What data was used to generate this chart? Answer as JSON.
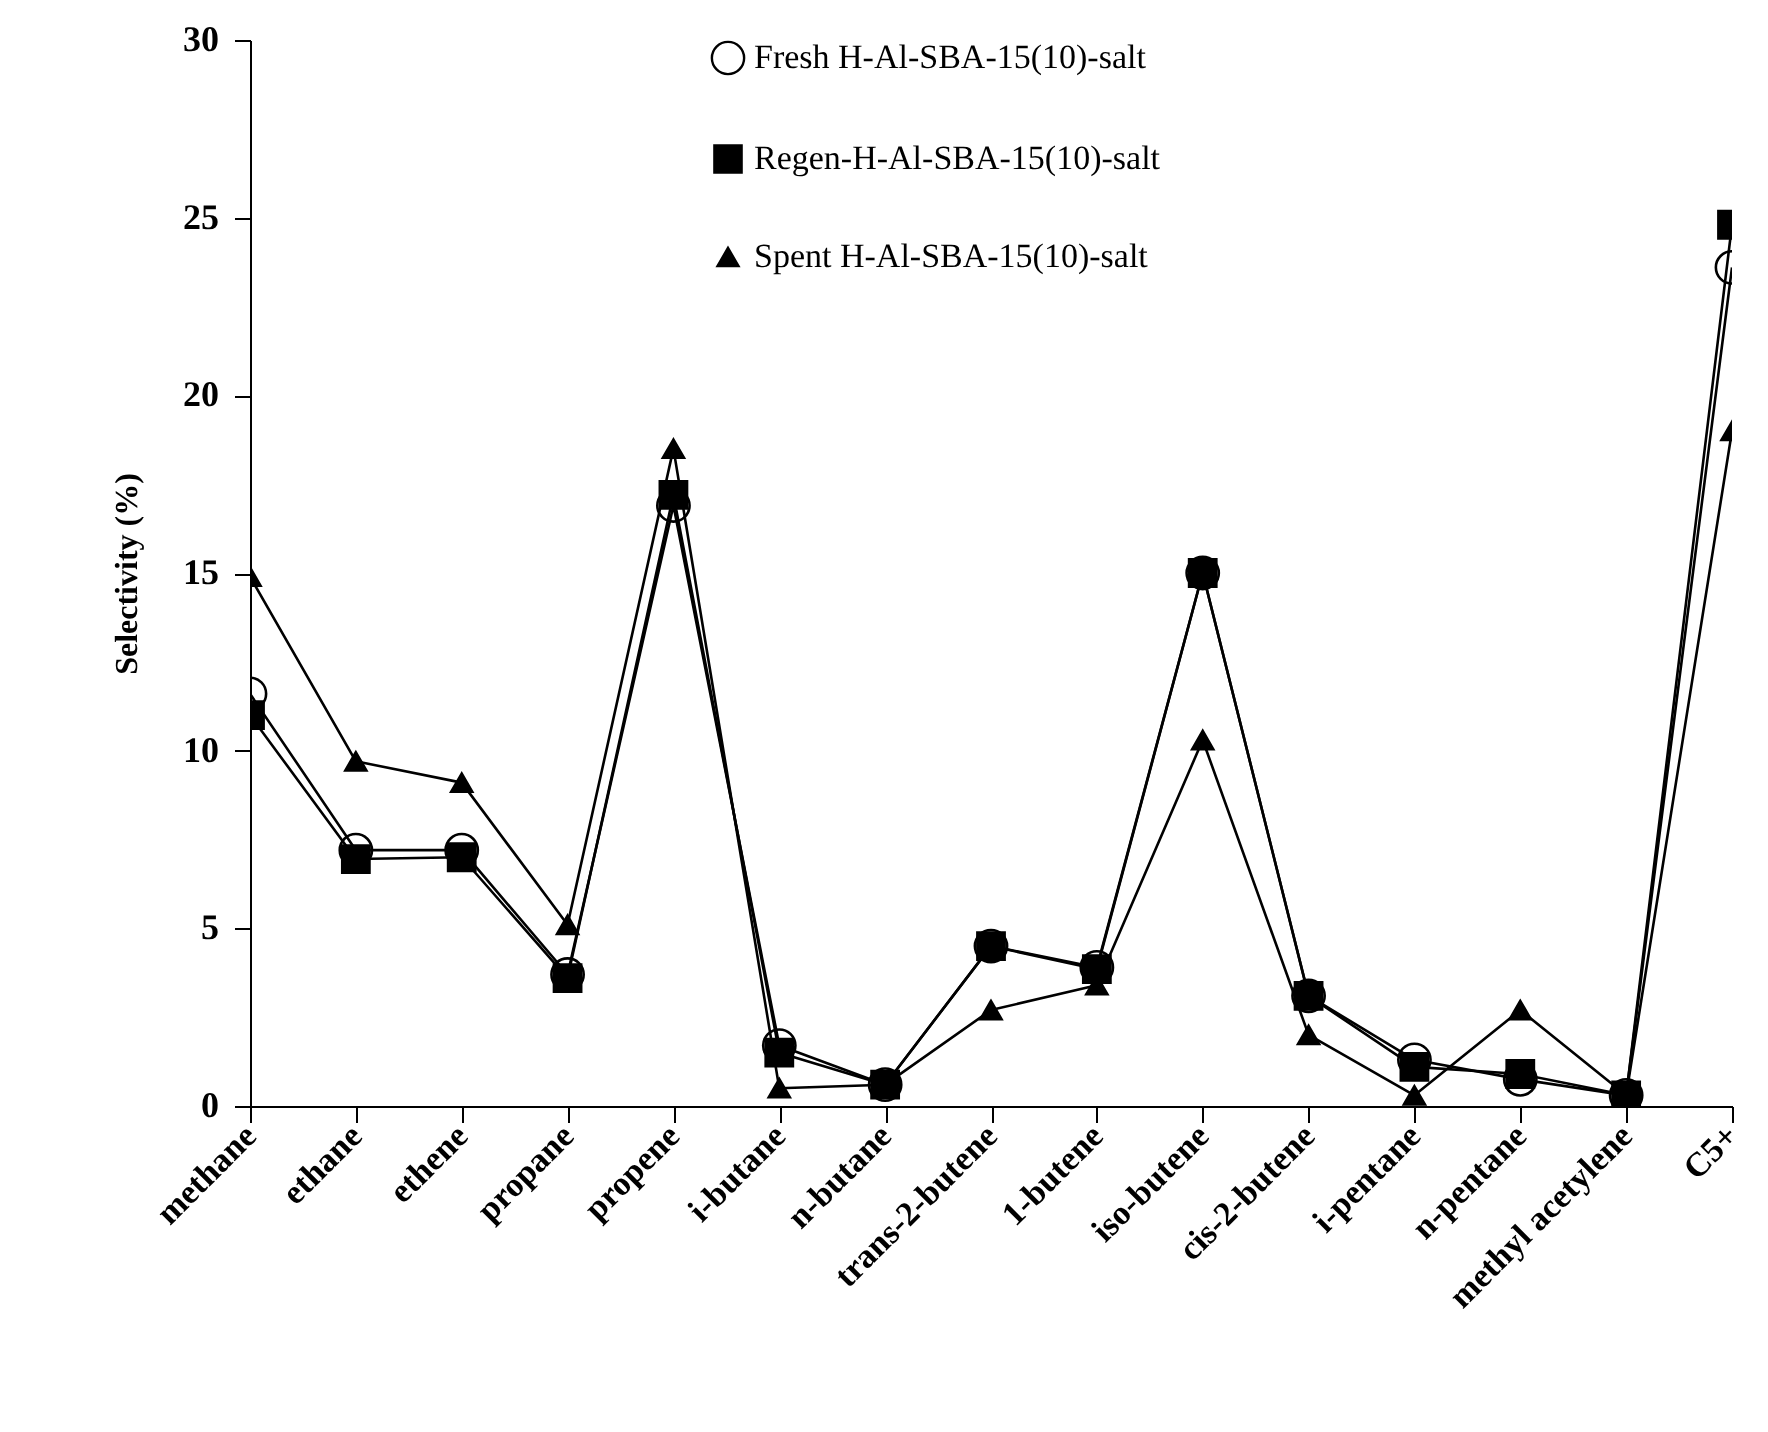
{
  "chart_data": {
    "type": "line",
    "ylabel": "Selectivity (%)",
    "categories": [
      "methane",
      "ethane",
      "ethene",
      "propane",
      "propene",
      "i-butane",
      "n-butane",
      "trans-2-butene",
      "1-butene",
      "iso-butene",
      "cis-2-butene",
      "i-pentane",
      "n-pentane",
      "methyl acetylene",
      "C5+"
    ],
    "series": [
      {
        "name": "Fresh H-Al-SBA-15(10)-salt",
        "color": "#000000",
        "marker": "circle",
        "values": [
          11.6,
          7.2,
          7.2,
          3.7,
          16.9,
          1.7,
          0.6,
          4.5,
          3.9,
          15.0,
          3.1,
          1.3,
          0.75,
          0.3,
          23.6
        ]
      },
      {
        "name": "Regen-H-Al-SBA-15(10)-salt",
        "color": "#000000",
        "marker": "square",
        "values": [
          11.0,
          6.95,
          7.0,
          3.6,
          17.2,
          1.5,
          0.6,
          4.5,
          3.85,
          15.0,
          3.1,
          1.1,
          0.9,
          0.3,
          24.8
        ]
      },
      {
        "name": "Spent H-Al-SBA-15(10)-salt",
        "color": "#000000",
        "marker": "triangle",
        "values": [
          14.9,
          9.7,
          9.1,
          5.1,
          18.5,
          0.5,
          0.6,
          2.7,
          3.4,
          10.3,
          2.0,
          0.3,
          2.7,
          0.3,
          19.0
        ]
      }
    ],
    "ylim": [
      0,
      30
    ],
    "yticks": [
      0,
      5,
      10,
      15,
      20,
      25,
      30
    ],
    "grid": false,
    "legend": "top"
  }
}
